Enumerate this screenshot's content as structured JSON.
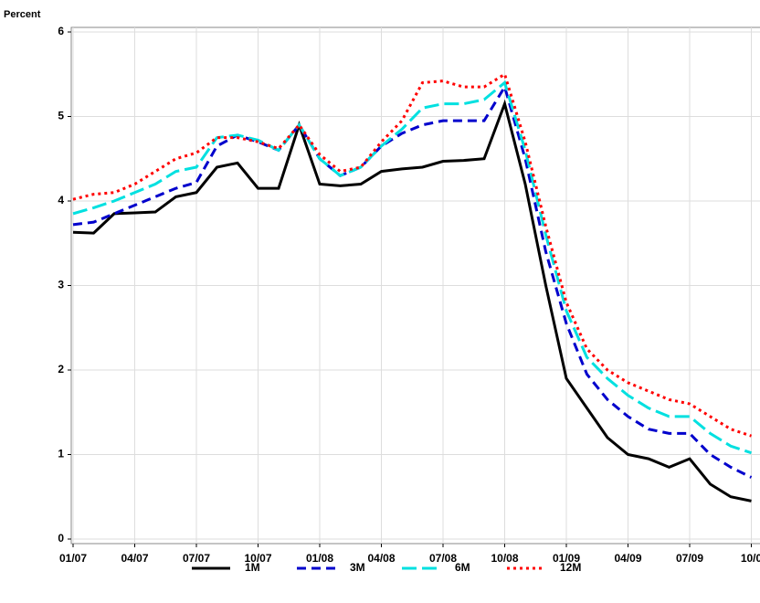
{
  "chart_data": {
    "type": "line",
    "y_label": "Percent",
    "categories": [
      "01/07",
      null,
      null,
      "04/07",
      null,
      null,
      "07/07",
      null,
      null,
      "10/07",
      null,
      null,
      "01/08",
      null,
      null,
      "04/08",
      null,
      null,
      "07/08",
      null,
      null,
      "10/08",
      null,
      null,
      "01/09",
      null,
      null,
      "04/09",
      null,
      null,
      "07/09",
      null,
      null,
      "10/0"
    ],
    "series": [
      {
        "name": "1M",
        "color": "#000000",
        "values": [
          3.63,
          3.62,
          3.85,
          3.86,
          3.87,
          4.05,
          4.1,
          4.4,
          4.45,
          4.15,
          4.15,
          4.9,
          4.2,
          4.18,
          4.2,
          4.35,
          4.38,
          4.4,
          4.47,
          4.48,
          4.5,
          5.15,
          4.2,
          3.0,
          1.9,
          1.55,
          1.2,
          1.0,
          0.95,
          0.85,
          0.95,
          0.65,
          0.5,
          0.45
        ]
      },
      {
        "name": "3M",
        "color": "#0000cc",
        "values": [
          3.72,
          3.75,
          3.85,
          3.95,
          4.05,
          4.15,
          4.22,
          4.65,
          4.78,
          4.7,
          4.6,
          4.9,
          4.5,
          4.3,
          4.4,
          4.65,
          4.8,
          4.9,
          4.95,
          4.95,
          4.95,
          5.35,
          4.5,
          3.4,
          2.55,
          1.95,
          1.65,
          1.45,
          1.3,
          1.25,
          1.25,
          1.0,
          0.85,
          0.73
        ]
      },
      {
        "name": "6M",
        "color": "#00e0e0",
        "values": [
          3.85,
          3.92,
          4.0,
          4.1,
          4.2,
          4.35,
          4.4,
          4.75,
          4.78,
          4.72,
          4.6,
          4.9,
          4.5,
          4.3,
          4.4,
          4.65,
          4.85,
          5.1,
          5.15,
          5.15,
          5.2,
          5.4,
          4.6,
          3.6,
          2.7,
          2.15,
          1.9,
          1.7,
          1.55,
          1.45,
          1.45,
          1.25,
          1.1,
          1.02
        ]
      },
      {
        "name": "12M",
        "color": "#ff0000",
        "values": [
          4.02,
          4.08,
          4.1,
          4.2,
          4.35,
          4.5,
          4.57,
          4.75,
          4.75,
          4.7,
          4.62,
          4.9,
          4.55,
          4.35,
          4.4,
          4.7,
          4.95,
          5.4,
          5.42,
          5.35,
          5.35,
          5.5,
          4.7,
          3.7,
          2.8,
          2.25,
          2.0,
          1.85,
          1.75,
          1.65,
          1.6,
          1.45,
          1.3,
          1.22
        ]
      }
    ],
    "ylim": [
      0,
      6
    ],
    "yticks": [
      0,
      1,
      2,
      3,
      4,
      5,
      6
    ],
    "grid": true
  }
}
